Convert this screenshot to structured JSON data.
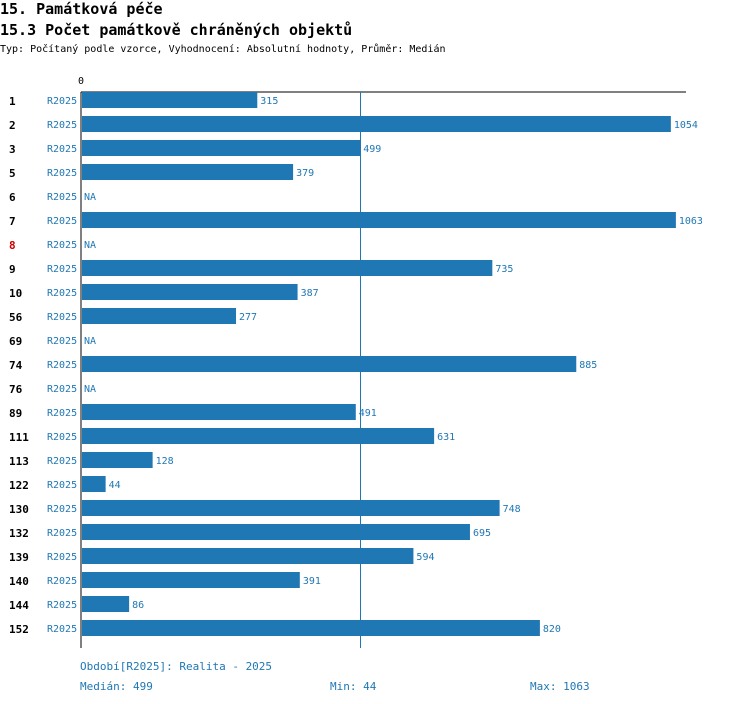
{
  "header": {
    "title": "15. Památková péče",
    "subtitle": "15.3 Počet památkově chráněných objektů",
    "description": "Typ: Počítaný podle vzorce, Vyhodnocení: Absolutní hodnoty, Průměr: Medián"
  },
  "chart_data": {
    "type": "bar",
    "orientation": "horizontal",
    "x_axis_start_label": "0",
    "xlim": [
      0,
      1090
    ],
    "median_line": 499,
    "bar_color": "#1f77b4",
    "highlight_color": "#cc0000",
    "rows": [
      {
        "id": "1",
        "period": "R2025",
        "value": 315,
        "label": "315"
      },
      {
        "id": "2",
        "period": "R2025",
        "value": 1054,
        "label": "1054"
      },
      {
        "id": "3",
        "period": "R2025",
        "value": 499,
        "label": "499"
      },
      {
        "id": "5",
        "period": "R2025",
        "value": 379,
        "label": "379"
      },
      {
        "id": "6",
        "period": "R2025",
        "value": null,
        "label": "NA"
      },
      {
        "id": "7",
        "period": "R2025",
        "value": 1063,
        "label": "1063"
      },
      {
        "id": "8",
        "period": "R2025",
        "value": null,
        "label": "NA",
        "highlight": true
      },
      {
        "id": "9",
        "period": "R2025",
        "value": 735,
        "label": "735"
      },
      {
        "id": "10",
        "period": "R2025",
        "value": 387,
        "label": "387"
      },
      {
        "id": "56",
        "period": "R2025",
        "value": 277,
        "label": "277"
      },
      {
        "id": "69",
        "period": "R2025",
        "value": null,
        "label": "NA"
      },
      {
        "id": "74",
        "period": "R2025",
        "value": 885,
        "label": "885"
      },
      {
        "id": "76",
        "period": "R2025",
        "value": null,
        "label": "NA"
      },
      {
        "id": "89",
        "period": "R2025",
        "value": 491,
        "label": "491"
      },
      {
        "id": "111",
        "period": "R2025",
        "value": 631,
        "label": "631"
      },
      {
        "id": "113",
        "period": "R2025",
        "value": 128,
        "label": "128"
      },
      {
        "id": "122",
        "period": "R2025",
        "value": 44,
        "label": "44"
      },
      {
        "id": "130",
        "period": "R2025",
        "value": 748,
        "label": "748"
      },
      {
        "id": "132",
        "period": "R2025",
        "value": 695,
        "label": "695"
      },
      {
        "id": "139",
        "period": "R2025",
        "value": 594,
        "label": "594"
      },
      {
        "id": "140",
        "period": "R2025",
        "value": 391,
        "label": "391"
      },
      {
        "id": "144",
        "period": "R2025",
        "value": 86,
        "label": "86"
      },
      {
        "id": "152",
        "period": "R2025",
        "value": 820,
        "label": "820"
      }
    ]
  },
  "footer": {
    "period_note": "Období[R2025]: Realita - 2025",
    "median": "Medián: 499",
    "min": "Min: 44",
    "max": "Max: 1063"
  }
}
